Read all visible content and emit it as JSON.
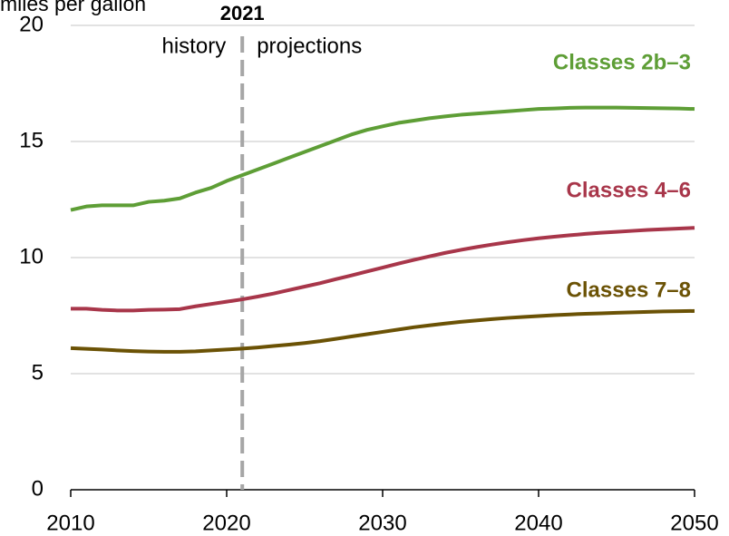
{
  "chart_data": {
    "type": "line",
    "y_axis_label": "miles per gallon",
    "annotations": [
      "history",
      "projections"
    ],
    "vline": 2021,
    "x": [
      2010,
      2011,
      2012,
      2013,
      2014,
      2015,
      2016,
      2017,
      2018,
      2019,
      2020,
      2021,
      2022,
      2023,
      2024,
      2025,
      2026,
      2027,
      2028,
      2029,
      2030,
      2031,
      2032,
      2033,
      2034,
      2035,
      2036,
      2037,
      2038,
      2039,
      2040,
      2041,
      2042,
      2043,
      2044,
      2045,
      2046,
      2047,
      2048,
      2049,
      2050
    ],
    "series": [
      {
        "name": "Classes 2b–3",
        "color": "#5e9e36",
        "values": [
          12.05,
          12.2,
          12.25,
          12.25,
          12.25,
          12.4,
          12.45,
          12.55,
          12.8,
          13.0,
          13.3,
          13.55,
          13.8,
          14.05,
          14.3,
          14.55,
          14.8,
          15.05,
          15.3,
          15.5,
          15.65,
          15.8,
          15.9,
          16.0,
          16.08,
          16.15,
          16.2,
          16.25,
          16.3,
          16.35,
          16.4,
          16.42,
          16.45,
          16.46,
          16.46,
          16.46,
          16.45,
          16.44,
          16.43,
          16.42,
          16.4
        ]
      },
      {
        "name": "Classes 4–6",
        "color": "#a8364a",
        "values": [
          7.8,
          7.8,
          7.75,
          7.72,
          7.72,
          7.75,
          7.76,
          7.78,
          7.9,
          8.0,
          8.1,
          8.2,
          8.32,
          8.45,
          8.6,
          8.75,
          8.9,
          9.07,
          9.23,
          9.4,
          9.57,
          9.74,
          9.9,
          10.05,
          10.2,
          10.33,
          10.45,
          10.56,
          10.66,
          10.75,
          10.83,
          10.9,
          10.96,
          11.02,
          11.07,
          11.11,
          11.15,
          11.19,
          11.22,
          11.25,
          11.28
        ]
      },
      {
        "name": "Classes 7–8",
        "color": "#6b5205",
        "values": [
          6.1,
          6.07,
          6.04,
          6.0,
          5.97,
          5.95,
          5.94,
          5.94,
          5.96,
          6.0,
          6.04,
          6.08,
          6.13,
          6.19,
          6.25,
          6.32,
          6.4,
          6.5,
          6.6,
          6.7,
          6.8,
          6.9,
          7.0,
          7.08,
          7.16,
          7.23,
          7.29,
          7.35,
          7.4,
          7.44,
          7.48,
          7.52,
          7.55,
          7.58,
          7.6,
          7.62,
          7.64,
          7.66,
          7.68,
          7.69,
          7.7
        ]
      }
    ],
    "xlim": [
      2010,
      2050
    ],
    "xticks": [
      2010,
      2020,
      2030,
      2040,
      2050
    ],
    "ylim": [
      0,
      20
    ],
    "yticks": [
      0,
      5,
      10,
      15,
      20
    ],
    "grid": true
  }
}
